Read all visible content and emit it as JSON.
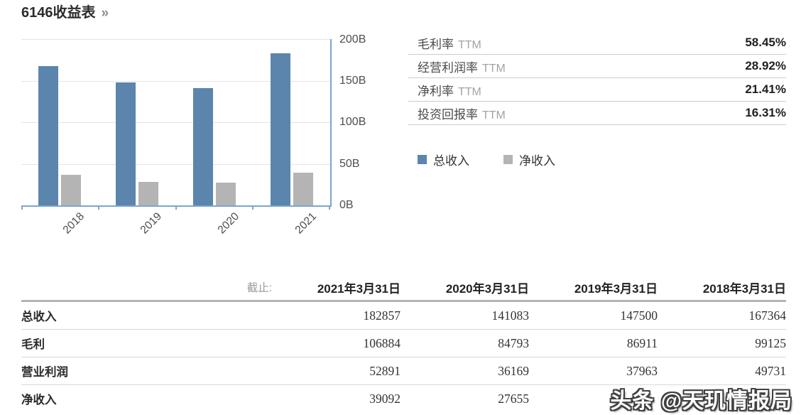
{
  "header": {
    "title": "6146收益表",
    "more_icon": "»"
  },
  "chart_data": {
    "type": "bar",
    "categories": [
      "2018",
      "2019",
      "2020",
      "2021"
    ],
    "series": [
      {
        "name": "总收入",
        "color": "#5b85ad",
        "values": [
          167.4,
          147.5,
          141.1,
          182.9
        ]
      },
      {
        "name": "净收入",
        "color": "#b4b4b4",
        "values": [
          37.0,
          28.5,
          27.7,
          39.1
        ]
      }
    ],
    "unit": "B",
    "ylim": [
      0,
      200
    ],
    "y_tick_labels": [
      "200B",
      "150B",
      "100B",
      "50B",
      "0B"
    ],
    "x_label_rotation_deg": -45,
    "grid": true,
    "legend_position": "below-right",
    "axis_color": "#7da6cc",
    "gridline_color": "#e4e4e4"
  },
  "metrics": {
    "rows": [
      {
        "label": "毛利率",
        "qualifier": "TTM",
        "value": "58.45%"
      },
      {
        "label": "经营利润率",
        "qualifier": "TTM",
        "value": "28.92%"
      },
      {
        "label": "净利率",
        "qualifier": "TTM",
        "value": "21.41%"
      },
      {
        "label": "投资回报率",
        "qualifier": "TTM",
        "value": "16.31%"
      }
    ]
  },
  "table": {
    "ending_label": "截止:",
    "columns": [
      "2021年3月31日",
      "2020年3月31日",
      "2019年3月31日",
      "2018年3月31日"
    ],
    "rows": [
      {
        "label": "总收入",
        "values": [
          "182857",
          "141083",
          "147500",
          "167364"
        ]
      },
      {
        "label": "毛利",
        "values": [
          "106884",
          "84793",
          "86911",
          "99125"
        ]
      },
      {
        "label": "营业利润",
        "values": [
          "52891",
          "36169",
          "37963",
          "49731"
        ]
      },
      {
        "label": "净收入",
        "values": [
          "39092",
          "27655",
          "",
          ""
        ]
      }
    ]
  },
  "watermark": {
    "text": "头条 @天玑情报局"
  }
}
